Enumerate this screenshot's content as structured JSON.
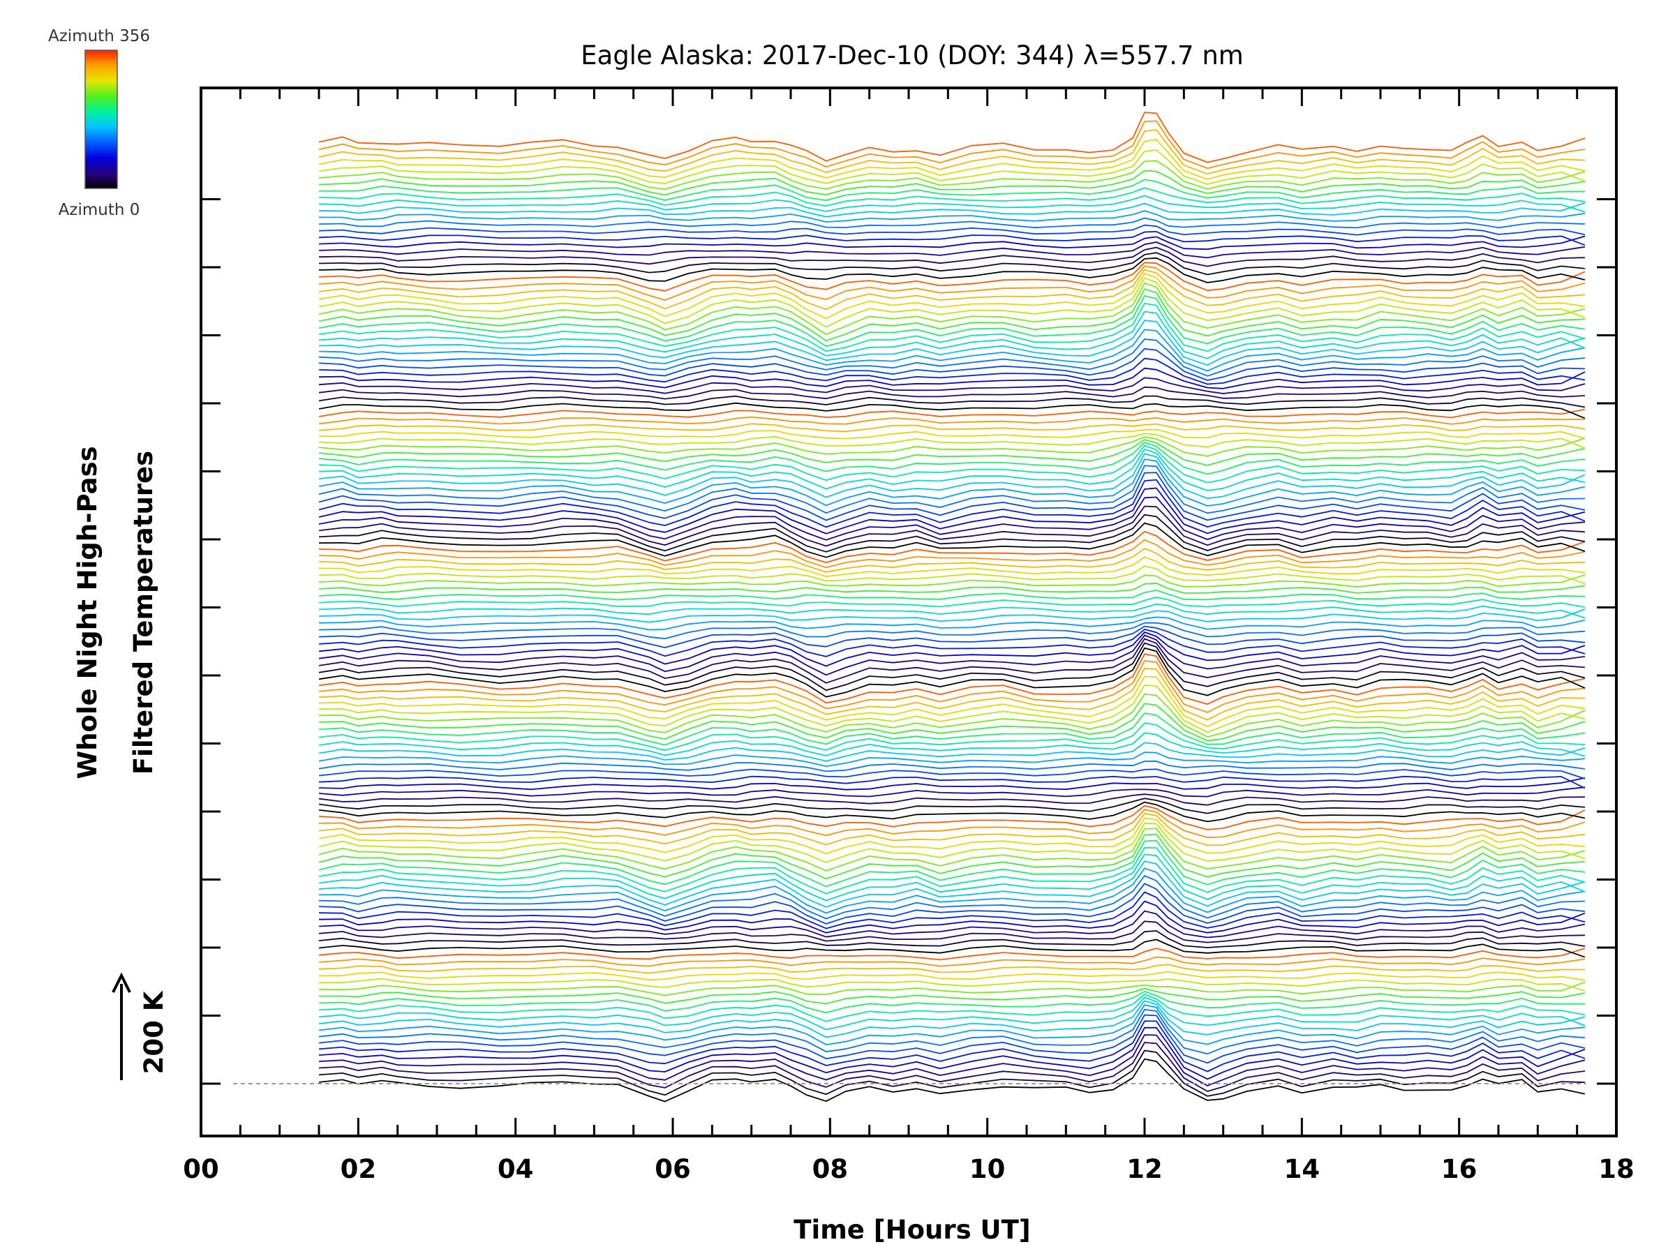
{
  "chart_data": {
    "type": "line",
    "title": "Eagle Alaska: 2017-Dec-10 (DOY: 344) λ=557.7 nm",
    "xlabel": "Time [Hours UT]",
    "ylabel_lines": [
      "Whole Night High-Pass",
      "Filtered Temperatures"
    ],
    "scale_label": "200 K",
    "xlim": [
      0,
      18
    ],
    "x_ticks": [
      "00",
      "02",
      "04",
      "06",
      "08",
      "10",
      "12",
      "14",
      "16",
      "18"
    ],
    "colorbar": {
      "top_label": "Azimuth 356",
      "bottom_label": "Azimuth 0",
      "colormap": "rainbow"
    },
    "stack": {
      "count": 140,
      "period": 20,
      "baseline_dashed": true
    },
    "x": [
      1.5,
      1.8,
      2.0,
      2.3,
      2.5,
      2.9,
      3.3,
      3.8,
      4.2,
      4.6,
      5.0,
      5.3,
      5.7,
      5.9,
      6.2,
      6.5,
      6.8,
      7.0,
      7.3,
      7.5,
      7.7,
      7.95,
      8.2,
      8.5,
      8.8,
      9.1,
      9.4,
      9.8,
      10.2,
      10.6,
      11.0,
      11.3,
      11.6,
      11.85,
      12.0,
      12.15,
      12.3,
      12.5,
      12.8,
      13.0,
      13.3,
      13.7,
      14.0,
      14.4,
      14.7,
      15.0,
      15.3,
      15.6,
      15.9,
      16.1,
      16.3,
      16.5,
      16.8,
      17.0,
      17.3,
      17.6
    ],
    "common_signal_K": [
      0,
      6,
      -2,
      4,
      2,
      0,
      -5,
      -8,
      -3,
      3,
      -2,
      -3,
      -25,
      -35,
      -18,
      2,
      8,
      5,
      10,
      -3,
      -20,
      -40,
      -25,
      -12,
      -18,
      -10,
      -22,
      -10,
      -5,
      -15,
      -15,
      -20,
      -10,
      15,
      60,
      55,
      20,
      -20,
      -40,
      -30,
      -15,
      -5,
      -20,
      -10,
      -15,
      -5,
      -10,
      -10,
      -15,
      -5,
      10,
      -5,
      5,
      -15,
      -5,
      -5
    ],
    "series": [
      {
        "name": "Azimuth 0",
        "values": [
          0,
          6,
          -2,
          4,
          2,
          0,
          -5,
          -8,
          -3,
          3,
          -2,
          -3,
          -25,
          -35,
          -18,
          2,
          8,
          5,
          10,
          -3,
          -20,
          -40,
          -25,
          -12,
          -18,
          -10,
          -22,
          -10,
          -5,
          -15,
          -15,
          -20,
          -10,
          15,
          60,
          55,
          20,
          -20,
          -40,
          -30,
          -15,
          -5,
          -20,
          -10,
          -15,
          -5,
          -10,
          -10,
          -15,
          -5,
          10,
          -5,
          5,
          -15,
          -5,
          -5
        ]
      }
    ]
  },
  "colors": {
    "axes": "#000000",
    "baseline": "#9a9a9a",
    "rainbow_stops": [
      "#000000",
      "#26007a",
      "#0000e0",
      "#0066ff",
      "#00c8ff",
      "#00f0a0",
      "#4cf020",
      "#e6e600",
      "#ffa000",
      "#ff2200"
    ]
  }
}
